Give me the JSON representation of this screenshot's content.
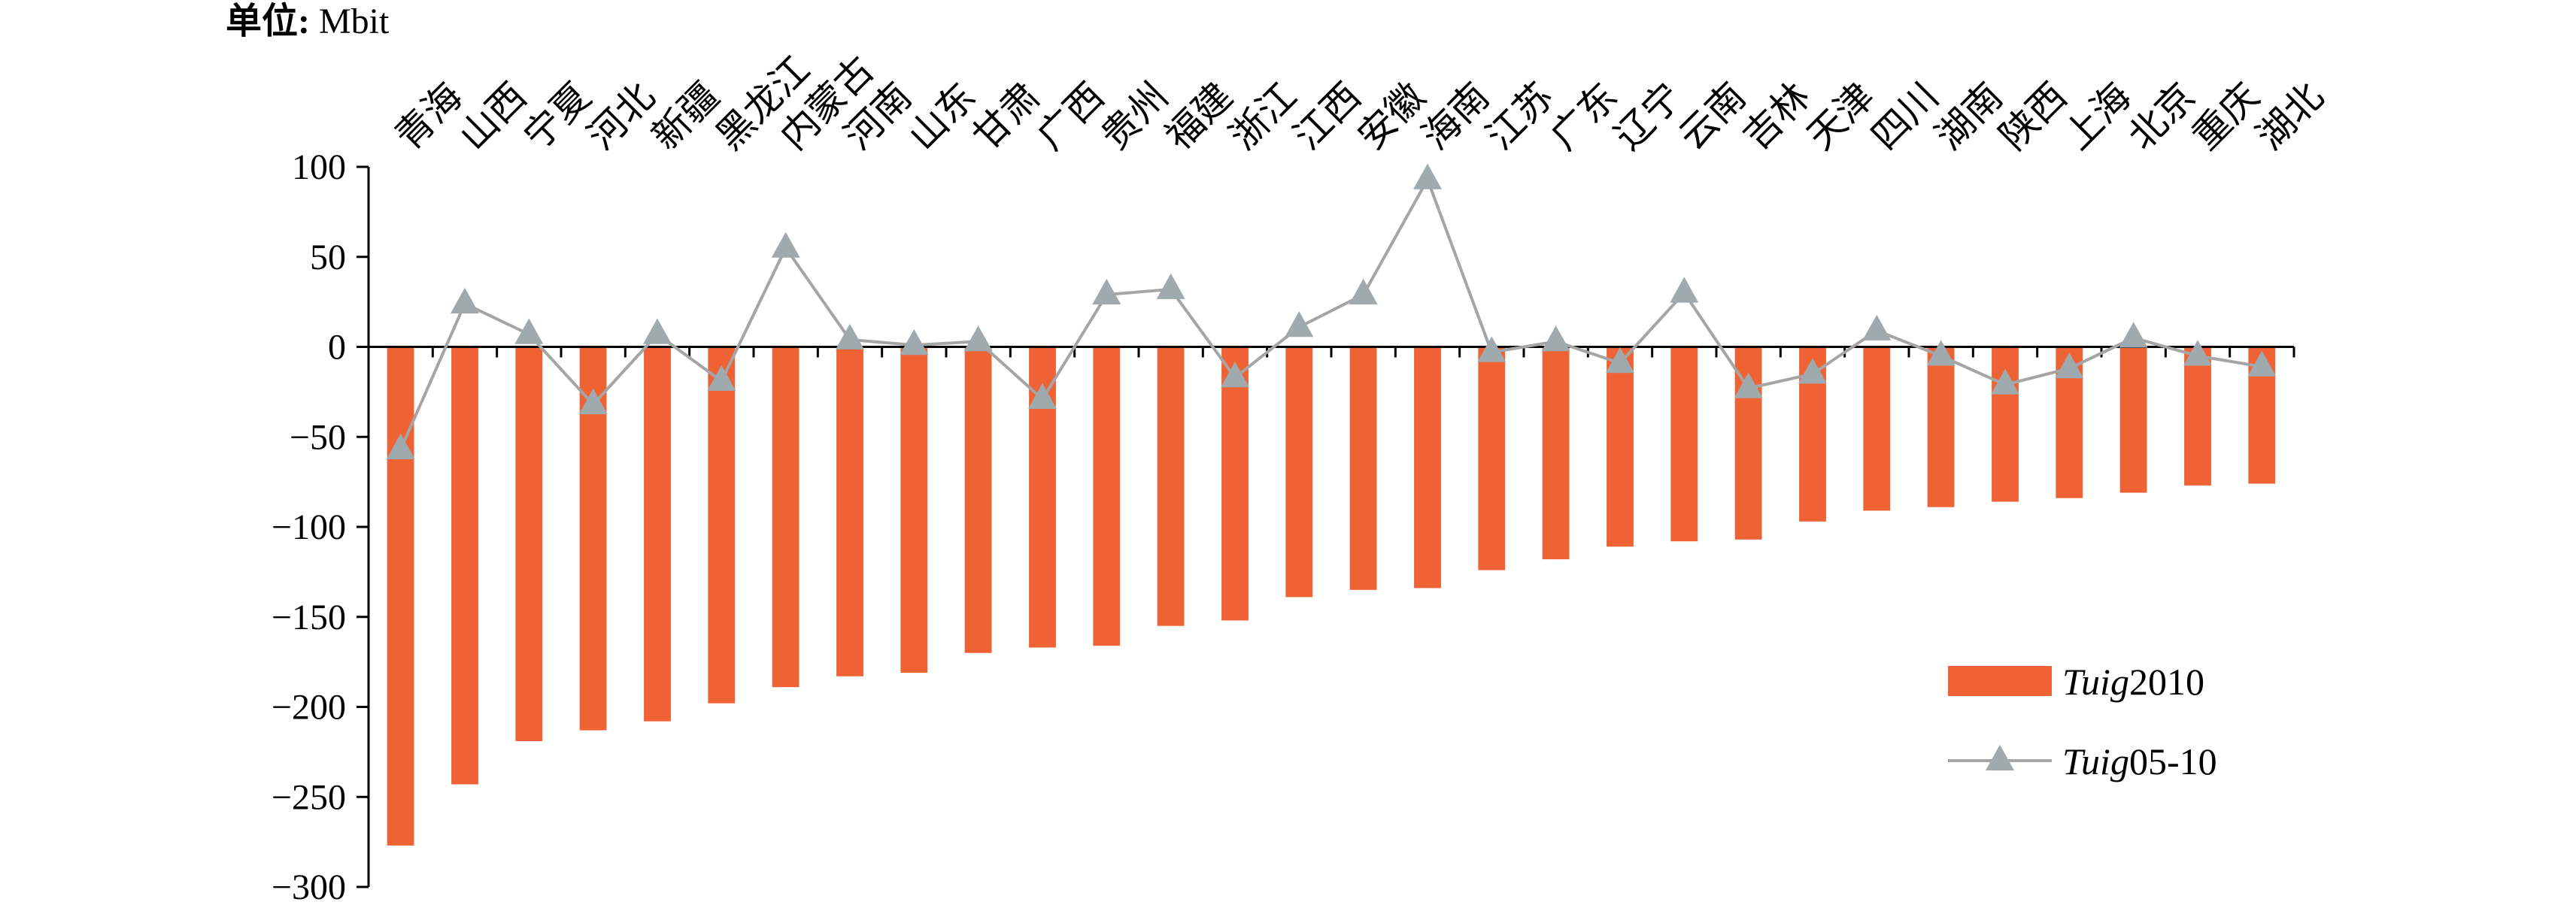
{
  "chart_data": {
    "type": "bar",
    "unit_label": "单位: Mbit",
    "unit_prefix": "单位:",
    "unit_suffix": "Mbit",
    "categories": [
      "青海",
      "山西",
      "宁夏",
      "河北",
      "新疆",
      "黑龙江",
      "内蒙古",
      "河南",
      "山东",
      "甘肃",
      "广西",
      "贵州",
      "福建",
      "浙江",
      "江西",
      "安徽",
      "海南",
      "江苏",
      "广东",
      "辽宁",
      "云南",
      "吉林",
      "天津",
      "四川",
      "湖南",
      "陕西",
      "上海",
      "北京",
      "重庆",
      "湖北"
    ],
    "series": [
      {
        "name": "Tuig2010",
        "name_italic": "Tuig",
        "name_rest": "2010",
        "type": "bar",
        "color": "#EE6234",
        "values": [
          -277,
          -243,
          -219,
          -213,
          -208,
          -198,
          -189,
          -183,
          -181,
          -170,
          -167,
          -166,
          -155,
          -152,
          -139,
          -135,
          -134,
          -124,
          -118,
          -111,
          -108,
          -107,
          -97,
          -91,
          -89,
          -86,
          -84,
          -81,
          -77,
          -76
        ]
      },
      {
        "name": "Tuig05-10",
        "name_italic": "Tuig",
        "name_rest": "05-10",
        "type": "line",
        "color": "#A5A5A5",
        "marker_color": "#9FAAAF",
        "marker": "triangle",
        "values": [
          -57,
          24,
          7,
          -32,
          7,
          -19,
          55,
          4,
          1,
          3,
          -29,
          29,
          32,
          -17,
          11,
          29,
          93,
          -3,
          3,
          -9,
          30,
          -23,
          -15,
          9,
          -5,
          -21,
          -12,
          5,
          -5,
          -11
        ]
      }
    ],
    "ylim": [
      -300,
      100
    ],
    "yticks": [
      100,
      50,
      0,
      -50,
      -100,
      -150,
      -200,
      -250,
      -300
    ],
    "ytick_labels": [
      "100",
      "50",
      "0",
      "−50",
      "−100",
      "−150",
      "−200",
      "−250",
      "−300"
    ],
    "xlabel": "",
    "ylabel": "",
    "legend_position": "right",
    "grid": false
  }
}
